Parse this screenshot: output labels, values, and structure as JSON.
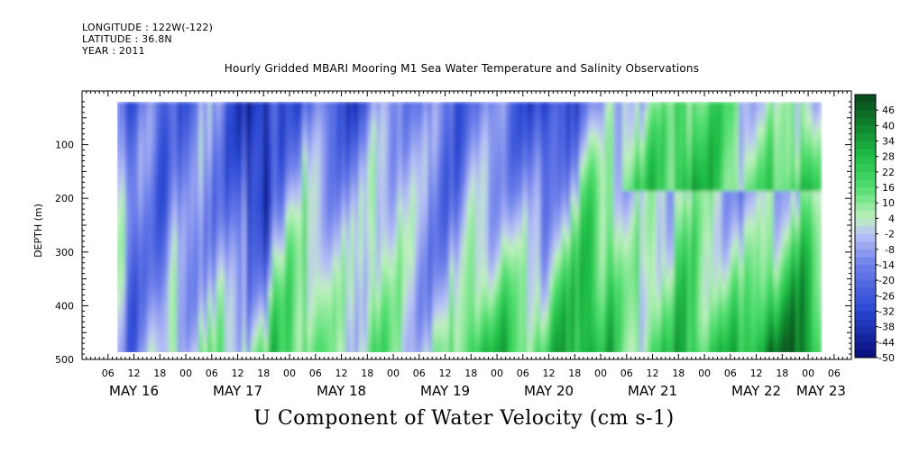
{
  "meta": {
    "longitude": "LONGITUDE : 122W(-122)",
    "latitude": "LATITUDE : 36.8N",
    "year": "YEAR : 2011"
  },
  "plot_title": "Hourly Gridded MBARI Mooring M1 Sea Water Temperature and Salinity Observations",
  "bottom_title": "U Component of Water Velocity (cm s-1)",
  "chart_data": {
    "type": "heatmap",
    "title": "Hourly Gridded MBARI Mooring M1 Sea Water Temperature and Salinity Observations",
    "variable": "U Component of Water Velocity (cm s-1)",
    "ylabel": "DEPTH (m)",
    "y_inverted": true,
    "ylim": [
      500,
      0
    ],
    "y_ticks": [
      100,
      200,
      300,
      400,
      500
    ],
    "x_start_hour": 0,
    "x_end_hour": 178,
    "x_hour_ticks": [
      "06",
      "12",
      "18",
      "00",
      "06",
      "12",
      "18",
      "00",
      "06",
      "12",
      "18",
      "00",
      "06",
      "12",
      "18",
      "00",
      "06",
      "12",
      "18",
      "00",
      "06",
      "12",
      "18",
      "00",
      "06",
      "12",
      "18",
      "00",
      "06",
      "12",
      "18",
      "00"
    ],
    "x_hour_tick_hours": [
      6,
      12,
      18,
      24,
      30,
      36,
      42,
      48,
      54,
      60,
      66,
      72,
      78,
      84,
      90,
      96,
      102,
      108,
      114,
      120,
      126,
      132,
      138,
      144,
      150,
      156,
      162,
      168,
      174,
      180,
      186,
      192
    ],
    "date_labels": [
      {
        "label": "MAY 16",
        "hour": 12
      },
      {
        "label": "MAY 17",
        "hour": 36
      },
      {
        "label": "MAY 18",
        "hour": 60
      },
      {
        "label": "MAY 19",
        "hour": 84
      },
      {
        "label": "MAY 20",
        "hour": 108
      },
      {
        "label": "MAY 21",
        "hour": 132
      },
      {
        "label": "MAY 22",
        "hour": 156
      },
      {
        "label": "MAY 23",
        "hour": 171
      }
    ],
    "data_start_hour": 8,
    "data_end_hour": 171,
    "data_depth_top": 20,
    "data_depth_bottom": 490,
    "colorbar_levels": [
      "46",
      "40",
      "34",
      "28",
      "22",
      "16",
      "10",
      "4",
      "-2",
      "-8",
      "-14",
      "-20",
      "-26",
      "-32",
      "-38",
      "-44",
      "-50"
    ],
    "colorbar_range": [
      -50,
      52
    ],
    "colors": {
      "strong_negative": "#0a1a8a",
      "negative": "#7f8ef0",
      "near_zero": "#c8f0c8",
      "positive": "#37d65a",
      "strong_positive": "#0b6b1e"
    }
  }
}
